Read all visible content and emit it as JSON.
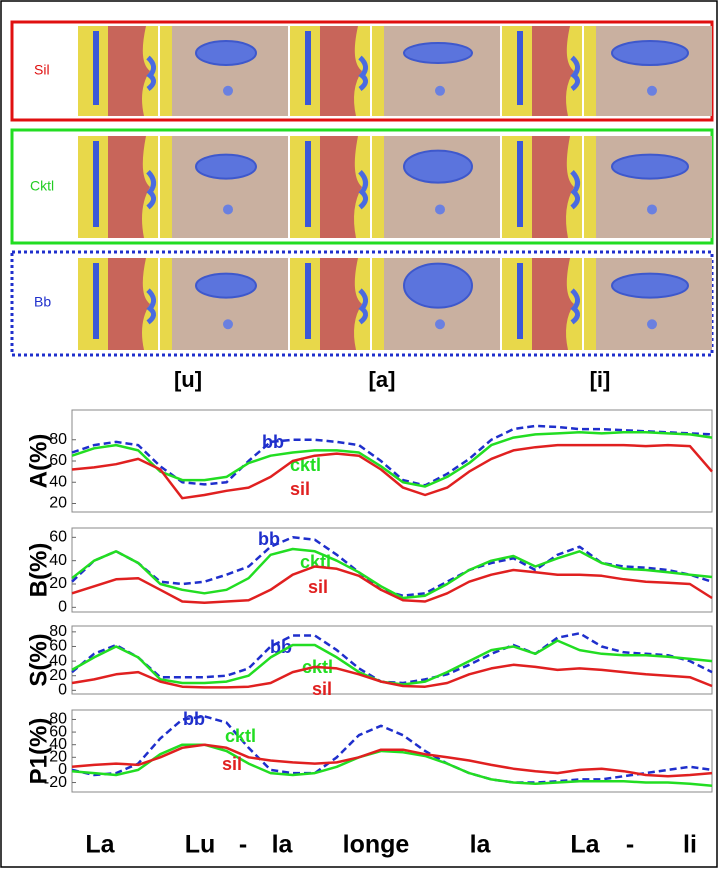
{
  "figure": {
    "rows": [
      "Sil",
      "Cktl",
      "Bb"
    ],
    "columns": [
      "[u]",
      "[a]",
      "[i]"
    ]
  },
  "chart_data": [
    {
      "type": "line",
      "ylabel": "A(%)",
      "ylim": [
        12,
        108
      ],
      "yticks": [
        20,
        40,
        60,
        80
      ],
      "series": [
        {
          "name": "bb",
          "color": "#1f2fcc",
          "dashed": true,
          "values": [
            68,
            75,
            78,
            75,
            55,
            40,
            38,
            40,
            60,
            78,
            80,
            80,
            78,
            75,
            60,
            42,
            37,
            48,
            62,
            80,
            90,
            93,
            92,
            90,
            90,
            89,
            88,
            87,
            86,
            85
          ]
        },
        {
          "name": "cktl",
          "color": "#22dd22",
          "dashed": false,
          "values": [
            65,
            72,
            75,
            70,
            50,
            42,
            42,
            45,
            58,
            65,
            68,
            70,
            70,
            68,
            55,
            40,
            36,
            45,
            58,
            75,
            82,
            85,
            86,
            87,
            86,
            87,
            87,
            86,
            85,
            82
          ]
        },
        {
          "name": "sil",
          "color": "#e02020",
          "dashed": false,
          "values": [
            52,
            54,
            57,
            62,
            52,
            25,
            28,
            32,
            35,
            45,
            60,
            65,
            67,
            65,
            52,
            35,
            28,
            35,
            50,
            62,
            70,
            73,
            75,
            75,
            75,
            75,
            74,
            75,
            74,
            50
          ]
        }
      ]
    },
    {
      "type": "line",
      "ylabel": "B(%)",
      "ylim": [
        -4,
        68
      ],
      "yticks": [
        0,
        20,
        40,
        60
      ],
      "series": [
        {
          "name": "bb",
          "color": "#1f2fcc",
          "dashed": true,
          "values": [
            22,
            40,
            48,
            38,
            22,
            20,
            22,
            28,
            35,
            52,
            60,
            58,
            45,
            30,
            15,
            10,
            12,
            22,
            32,
            38,
            42,
            32,
            45,
            52,
            38,
            35,
            34,
            32,
            28,
            22
          ]
        },
        {
          "name": "cktl",
          "color": "#22dd22",
          "dashed": false,
          "values": [
            25,
            40,
            48,
            38,
            20,
            15,
            12,
            15,
            25,
            45,
            50,
            48,
            40,
            30,
            18,
            8,
            10,
            20,
            32,
            40,
            44,
            35,
            42,
            48,
            38,
            33,
            32,
            30,
            28,
            26
          ]
        },
        {
          "name": "sil",
          "color": "#e02020",
          "dashed": false,
          "values": [
            12,
            18,
            24,
            25,
            15,
            5,
            4,
            5,
            6,
            15,
            28,
            35,
            33,
            27,
            15,
            6,
            5,
            12,
            22,
            28,
            32,
            30,
            28,
            28,
            27,
            24,
            22,
            21,
            20,
            8
          ]
        }
      ]
    },
    {
      "type": "line",
      "ylabel": "S(%)",
      "ylim": [
        -5,
        88
      ],
      "yticks": [
        0,
        20,
        40,
        60,
        80
      ],
      "series": [
        {
          "name": "bb",
          "color": "#1f2fcc",
          "dashed": true,
          "values": [
            25,
            50,
            62,
            45,
            18,
            18,
            18,
            20,
            30,
            60,
            75,
            75,
            55,
            30,
            12,
            10,
            15,
            22,
            35,
            50,
            62,
            50,
            72,
            78,
            60,
            52,
            50,
            48,
            40,
            25
          ]
        },
        {
          "name": "cktl",
          "color": "#22dd22",
          "dashed": false,
          "values": [
            28,
            45,
            60,
            45,
            15,
            10,
            10,
            12,
            20,
            45,
            62,
            62,
            45,
            25,
            12,
            8,
            12,
            25,
            40,
            55,
            60,
            50,
            68,
            55,
            50,
            48,
            48,
            46,
            43,
            40
          ]
        },
        {
          "name": "sil",
          "color": "#e02020",
          "dashed": false,
          "values": [
            10,
            15,
            22,
            25,
            12,
            5,
            4,
            4,
            5,
            10,
            25,
            32,
            30,
            22,
            12,
            6,
            5,
            10,
            22,
            30,
            35,
            32,
            28,
            30,
            28,
            25,
            22,
            20,
            18,
            6
          ]
        }
      ]
    },
    {
      "type": "line",
      "ylabel": "P1(%)",
      "ylim": [
        -35,
        95
      ],
      "yticks": [
        -20,
        0,
        20,
        40,
        60,
        80
      ],
      "series": [
        {
          "name": "bb",
          "color": "#1f2fcc",
          "dashed": true,
          "values": [
            0,
            -8,
            -5,
            10,
            50,
            80,
            85,
            75,
            35,
            0,
            -5,
            -5,
            20,
            55,
            70,
            55,
            30,
            10,
            -5,
            -15,
            -20,
            -20,
            -18,
            -15,
            -15,
            -10,
            -5,
            0,
            5,
            0
          ]
        },
        {
          "name": "cktl",
          "color": "#22dd22",
          "dashed": false,
          "values": [
            -2,
            -5,
            -8,
            0,
            25,
            40,
            40,
            30,
            10,
            -5,
            -8,
            -5,
            5,
            20,
            30,
            28,
            22,
            10,
            -5,
            -15,
            -20,
            -22,
            -20,
            -18,
            -18,
            -18,
            -20,
            -20,
            -22,
            -25
          ]
        },
        {
          "name": "sil",
          "color": "#e02020",
          "dashed": false,
          "values": [
            5,
            8,
            10,
            8,
            20,
            35,
            40,
            35,
            20,
            15,
            12,
            10,
            12,
            20,
            32,
            32,
            25,
            20,
            15,
            8,
            2,
            -2,
            -5,
            0,
            2,
            -2,
            -8,
            -10,
            -8,
            -5
          ]
        }
      ]
    }
  ],
  "x_labels": [
    "La",
    "Lu",
    "-",
    "la",
    "longe",
    "la",
    "La",
    "-",
    "li"
  ]
}
